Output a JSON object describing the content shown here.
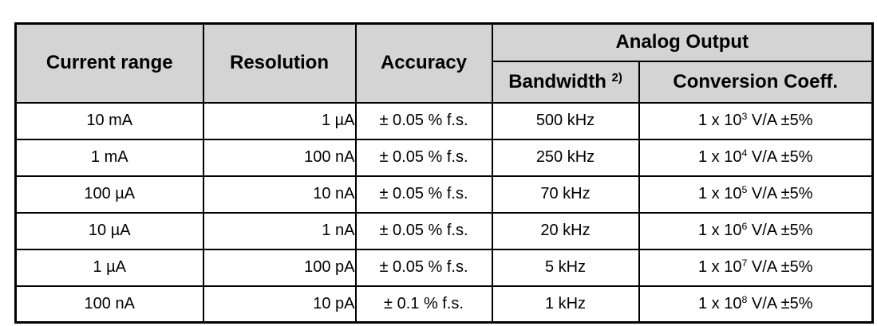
{
  "headers": {
    "current_range": "Current range",
    "resolution": "Resolution",
    "accuracy": "Accuracy",
    "analog_output": "Analog Output",
    "bandwidth": "Bandwidth",
    "bandwidth_note": "2)",
    "conversion": "Conversion Coeff."
  },
  "rows": [
    {
      "range": "10 mA",
      "resolution": "1 µA",
      "accuracy": "± 0.05 % f.s.",
      "bandwidth": "500 kHz",
      "conv_prefix": "1 x 10",
      "conv_exp": "3",
      "conv_suffix": " V/A ±5%"
    },
    {
      "range": "1 mA",
      "resolution": "100 nA",
      "accuracy": "± 0.05 % f.s.",
      "bandwidth": "250 kHz",
      "conv_prefix": "1 x 10",
      "conv_exp": "4",
      "conv_suffix": " V/A ±5%"
    },
    {
      "range": "100 µA",
      "resolution": "10 nA",
      "accuracy": "± 0.05 % f.s.",
      "bandwidth": "70 kHz",
      "conv_prefix": "1 x 10",
      "conv_exp": "5",
      "conv_suffix": " V/A ±5%"
    },
    {
      "range": "10 µA",
      "resolution": "1 nA",
      "accuracy": "± 0.05 % f.s.",
      "bandwidth": "20 kHz",
      "conv_prefix": "1 x 10",
      "conv_exp": "6",
      "conv_suffix": " V/A ±5%"
    },
    {
      "range": "1 µA",
      "resolution": "100 pA",
      "accuracy": "± 0.05 % f.s.",
      "bandwidth": "5 kHz",
      "conv_prefix": "1 x 10",
      "conv_exp": "7",
      "conv_suffix": " V/A ±5%"
    },
    {
      "range": "100 nA",
      "resolution": "10 pA",
      "accuracy": "± 0.1 % f.s.",
      "bandwidth": "1 kHz",
      "conv_prefix": "1 x 10",
      "conv_exp": "8",
      "conv_suffix": " V/A ±5%"
    }
  ]
}
